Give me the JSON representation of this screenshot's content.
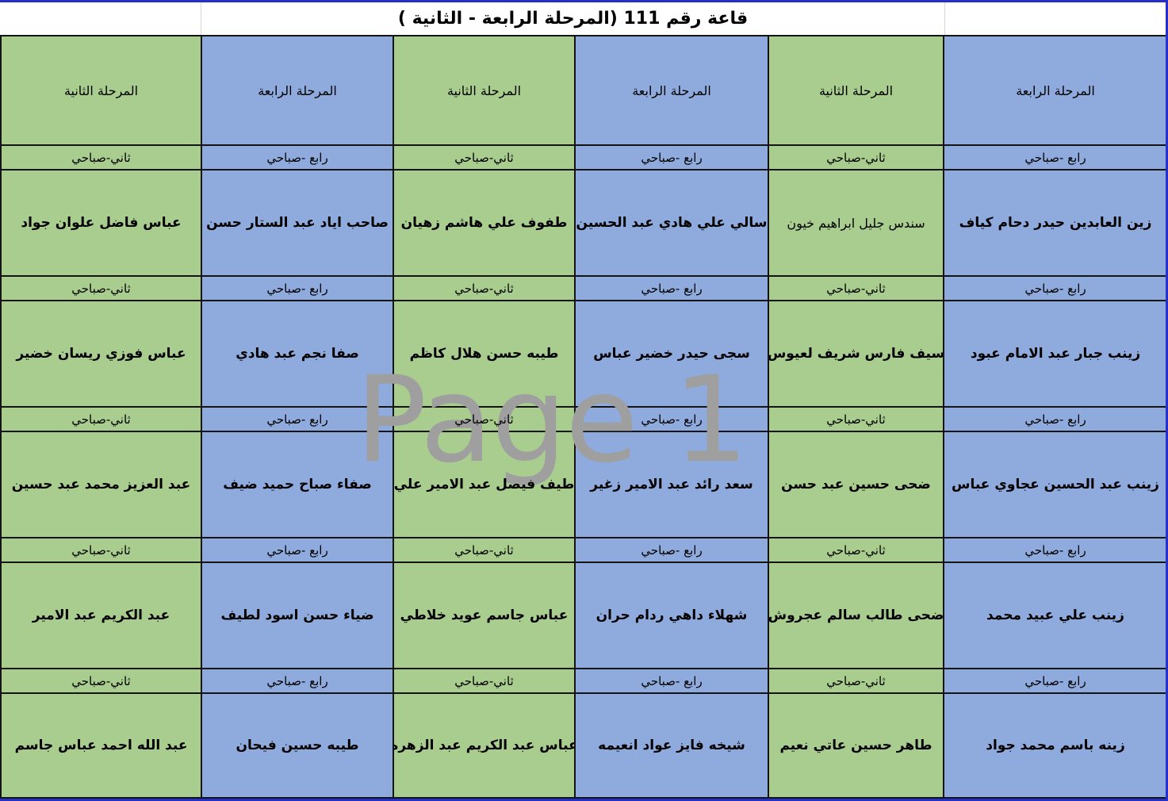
{
  "title": "قاعة رقم 111 (المرحلة الرابعة - الثانية )",
  "watermark": "Page 1",
  "colors": {
    "stage_second_green": "#A9CD8E",
    "stage_fourth_blue": "#8FAADC",
    "page_break_border_blue": "#2430C8",
    "cell_border": "#141414",
    "watermark_gray": "#9F9F9F"
  },
  "columns": [
    {
      "stage": "المرحلة الثانية",
      "session": "ثاني-صباحي",
      "students": [
        "عباس فاضل علوان جواد",
        "عباس فوزي ريسان خضير",
        "عبد العزيز محمد عبد حسين",
        "عبد الكريم عبد الامير",
        "عبد الله احمد عباس جاسم"
      ]
    },
    {
      "stage": "المرحلة الرابعة",
      "session": "رابع -صباحي",
      "students": [
        "صاحب اياد عبد الستار حسن",
        "صفا نجم عبد هادي",
        "صفاء صباح حميد ضيف",
        "ضياء حسن اسود لطيف",
        "طيبه حسين فيحان"
      ]
    },
    {
      "stage": "المرحلة الثانية",
      "session": "ثاني-صباحي",
      "students": [
        "طفوف علي هاشم زهيان",
        "طيبه حسن هلال كاظم",
        "طيف فيصل عبد الامير علي",
        "عباس جاسم عويد خلاطي",
        "عباس عبد الكريم عبد الزهره"
      ]
    },
    {
      "stage": "المرحلة الرابعة",
      "session": "رابع -صباحي",
      "students": [
        "سالي علي هادي عبد الحسين",
        "سجى حيدر خضير عباس",
        "سعد رائد عبد الامير زغير",
        "شهلاء داهي ردام حران",
        "شيخه فايز عواد انعيمه"
      ]
    },
    {
      "stage": "المرحلة الثانية",
      "session": "ثاني-صباحي",
      "students": [
        "سندس جليل ابراهيم خيون",
        "سيف فارس شريف لعيوس",
        "ضحى حسين عبد حسن",
        "ضحى طالب سالم عجروش",
        "طاهر حسين عاتي نعيم"
      ]
    },
    {
      "stage": "المرحلة الرابعة",
      "session": "رابع -صباحي",
      "students": [
        "زين العابدين حيدر دحام كياف",
        "زينب جبار عبد الامام عبود",
        "زينب عبد الحسين عجاوي عباس",
        "زينب علي عبيد محمد",
        "زينه باسم محمد جواد"
      ]
    }
  ]
}
